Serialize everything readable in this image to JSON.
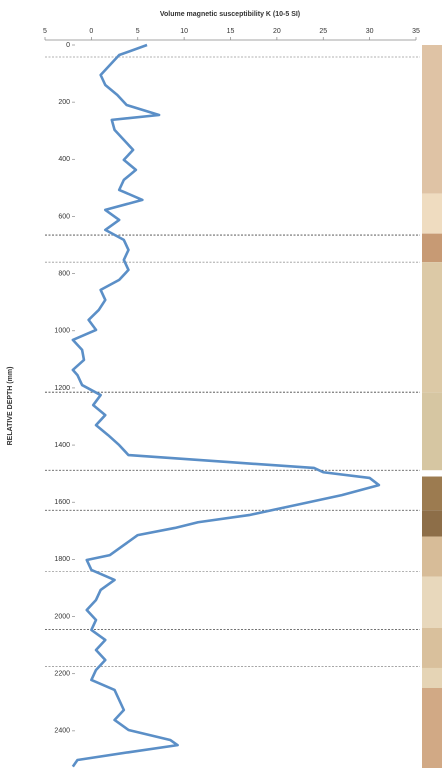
{
  "chart_data": {
    "type": "line",
    "title": "Volume magnetic susceptibility K (10-5 SI)",
    "y_label": "RELATIVE DEPTH (mm)",
    "xlim": [
      -5,
      35
    ],
    "xticks": [
      {
        "value": -5,
        "label": "5"
      },
      0,
      5,
      10,
      15,
      20,
      25,
      30,
      35
    ],
    "ylim": [
      0,
      2530
    ],
    "yticks": [
      0,
      200,
      400,
      600,
      800,
      1000,
      1200,
      1400,
      1600,
      1800,
      2000,
      2200,
      2400
    ],
    "y_inverted": true,
    "y": [
      0,
      35,
      70,
      105,
      140,
      175,
      210,
      245,
      262,
      297,
      332,
      367,
      402,
      437,
      472,
      507,
      542,
      577,
      612,
      647,
      682,
      717,
      752,
      787,
      822,
      857,
      892,
      927,
      962,
      997,
      1032,
      1067,
      1102,
      1137,
      1155,
      1190,
      1225,
      1260,
      1295,
      1330,
      1365,
      1400,
      1435,
      1460,
      1480,
      1495,
      1515,
      1540,
      1575,
      1610,
      1645,
      1670,
      1690,
      1715,
      1750,
      1785,
      1802,
      1837,
      1872,
      1907,
      1942,
      1977,
      2012,
      2047,
      2082,
      2117,
      2152,
      2187,
      2222,
      2257,
      2292,
      2327,
      2362,
      2397,
      2432,
      2450,
      2475,
      2502,
      2525
    ],
    "series": [
      {
        "color": "#5b8fc7",
        "values": [
          6,
          3,
          2,
          1,
          1.5,
          2.8,
          3.8,
          7.3,
          2.2,
          2.5,
          3.5,
          4.5,
          3.5,
          4.8,
          3.5,
          3,
          5.5,
          1.5,
          3,
          1.5,
          3.5,
          4,
          3.5,
          4,
          3,
          1,
          1.5,
          0.8,
          -0.3,
          0.5,
          -2,
          -1,
          -0.8,
          -2,
          -1.5,
          -1,
          1,
          0.2,
          1.5,
          0.5,
          1.8,
          3,
          4,
          15,
          24,
          25,
          30,
          31,
          27,
          22,
          17,
          11.5,
          9,
          5,
          3.5,
          2,
          -0.5,
          0,
          2.5,
          1,
          0.5,
          -0.5,
          0.5,
          0,
          1.5,
          0.5,
          1.5,
          0.5,
          0,
          2.5,
          3,
          3.5,
          2.5,
          4,
          8.5,
          9.3,
          4,
          -1.5,
          -2
        ]
      }
    ],
    "reference_lines": [
      {
        "value": 42,
        "color": "#999"
      },
      {
        "value": 665,
        "color": "#444"
      },
      {
        "value": 760,
        "color": "#999"
      },
      {
        "value": 1215,
        "color": "#444"
      },
      {
        "value": 1488,
        "color": "#444"
      },
      {
        "value": 1628,
        "color": "#444"
      },
      {
        "value": 1842,
        "color": "#999"
      },
      {
        "value": 2045,
        "color": "#444"
      },
      {
        "value": 2175,
        "color": "#999"
      }
    ],
    "strip": [
      {
        "from": 0,
        "to": 520,
        "color": "#dfc3a5"
      },
      {
        "from": 520,
        "to": 660,
        "color": "#efdcc0"
      },
      {
        "from": 660,
        "to": 760,
        "color": "#c79a74"
      },
      {
        "from": 760,
        "to": 1215,
        "color": "#dcc9a6"
      },
      {
        "from": 1215,
        "to": 1488,
        "color": "#d6c6a2"
      },
      {
        "from": 1510,
        "to": 1628,
        "color": "#9c7b50"
      },
      {
        "from": 1628,
        "to": 1720,
        "color": "#8d6e48"
      },
      {
        "from": 1720,
        "to": 1860,
        "color": "#d7bc98"
      },
      {
        "from": 1860,
        "to": 2040,
        "color": "#e8d8bc"
      },
      {
        "from": 2040,
        "to": 2180,
        "color": "#d9c09c"
      },
      {
        "from": 2180,
        "to": 2250,
        "color": "#e5d4b5"
      },
      {
        "from": 2250,
        "to": 2530,
        "color": "#d1a985"
      }
    ]
  }
}
